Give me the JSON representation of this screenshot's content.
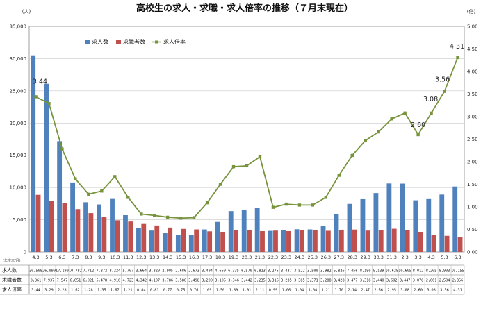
{
  "chart_data": {
    "type": "bar",
    "title": "高校生の求人・求職・求人倍率の推移（７月末現在）",
    "left_unit": "(人)",
    "right_unit": "(倍)",
    "table_row_label": "(年度末/月)",
    "categories": [
      "4.3",
      "5.3",
      "6.3",
      "7.3",
      "8.3",
      "9.3",
      "10.3",
      "11.3",
      "12.3",
      "13.3",
      "14.3",
      "15.3",
      "16.3",
      "17.3",
      "18.3",
      "19.3",
      "20.3",
      "21.3",
      "22.3",
      "23.3",
      "24.3",
      "25.3",
      "26.3",
      "27.3",
      "28.3",
      "29.3",
      "30.3",
      "31.3",
      "2.3",
      "3.3",
      "4.3",
      "5.3",
      "6.3"
    ],
    "ylim_left": [
      0,
      35000
    ],
    "yticks_left": [
      "0",
      "5,000",
      "10,000",
      "15,000",
      "20,000",
      "25,000",
      "30,000",
      "35,000"
    ],
    "ylim_right": [
      0,
      5.0
    ],
    "yticks_right": [
      "0.00",
      "0.50",
      "1.00",
      "1.50",
      "2.00",
      "2.50",
      "3.00",
      "3.50",
      "4.00",
      "4.50",
      "5.00"
    ],
    "legend_position": "top-left",
    "series": [
      {
        "name": "求人数",
        "type": "bar",
        "color": "#4f81bd",
        "axis": "left",
        "values": [
          30508,
          26090,
          17190,
          10782,
          7712,
          7372,
          8224,
          5707,
          3664,
          3320,
          2905,
          2686,
          2673,
          3494,
          4660,
          6335,
          6570,
          6813,
          3275,
          3437,
          3522,
          3500,
          3982,
          5826,
          7456,
          8190,
          9139,
          10628,
          10605,
          8012,
          8205,
          8903,
          10155
        ],
        "labels": [
          "30,508",
          "26,090",
          "17,190",
          "10,782",
          "7,712",
          "7,372",
          "8,224",
          "5,707",
          "3,664",
          "3,320",
          "2,905",
          "2,686",
          "2,673",
          "3,494",
          "4,660",
          "6,335",
          "6,570",
          "6,813",
          "3,275",
          "3,437",
          "3,522",
          "3,500",
          "3,982",
          "5,826",
          "7,456",
          "8,190",
          "9,139",
          "10,628",
          "10,605",
          "8,012",
          "8,205",
          "8,903",
          "10,155"
        ]
      },
      {
        "name": "求職者数",
        "type": "bar",
        "color": "#c0504d",
        "axis": "left",
        "values": [
          8861,
          7937,
          7547,
          6651,
          6021,
          5478,
          4916,
          4723,
          4342,
          4107,
          3786,
          3580,
          3498,
          3200,
          3105,
          3346,
          3442,
          3235,
          3316,
          3235,
          3385,
          3371,
          3288,
          3428,
          3477,
          3318,
          3440,
          3602,
          3447,
          3078,
          2661,
          2504,
          2356
        ],
        "labels": [
          "8,861",
          "7,937",
          "7,547",
          "6,651",
          "6,021",
          "5,478",
          "4,916",
          "4,723",
          "4,342",
          "4,107",
          "3,786",
          "3,580",
          "3,498",
          "3,200",
          "3,105",
          "3,346",
          "3,442",
          "3,235",
          "3,316",
          "3,235",
          "3,385",
          "3,371",
          "3,288",
          "3,428",
          "3,477",
          "3,318",
          "3,440",
          "3,602",
          "3,447",
          "3,078",
          "2,661",
          "2,504",
          "2,356"
        ]
      },
      {
        "name": "求人倍率",
        "type": "line",
        "color": "#77933c",
        "axis": "right",
        "values": [
          3.44,
          3.29,
          2.28,
          1.62,
          1.28,
          1.35,
          1.67,
          1.21,
          0.84,
          0.81,
          0.77,
          0.75,
          0.76,
          1.09,
          1.5,
          1.89,
          1.91,
          2.11,
          0.99,
          1.06,
          1.04,
          1.04,
          1.21,
          1.7,
          2.14,
          2.47,
          2.66,
          2.95,
          3.08,
          2.6,
          3.08,
          3.56,
          4.31
        ],
        "labels": [
          "3.44",
          "3.29",
          "2.28",
          "1.62",
          "1.28",
          "1.35",
          "1.67",
          "1.21",
          "0.84",
          "0.81",
          "0.77",
          "0.75",
          "0.76",
          "1.09",
          "1.50",
          "1.89",
          "1.91",
          "2.11",
          "0.99",
          "1.06",
          "1.04",
          "1.04",
          "1.21",
          "1.70",
          "2.14",
          "2.47",
          "2.66",
          "2.95",
          "3.08",
          "2.60",
          "3.08",
          "3.56",
          "4.31"
        ]
      }
    ],
    "annotations": [
      {
        "text": "3.44",
        "index": 0
      },
      {
        "text": "2.60",
        "index": 29
      },
      {
        "text": "3.08",
        "index": 30
      },
      {
        "text": "3.56",
        "index": 31
      },
      {
        "text": "4.31",
        "index": 32
      }
    ]
  }
}
